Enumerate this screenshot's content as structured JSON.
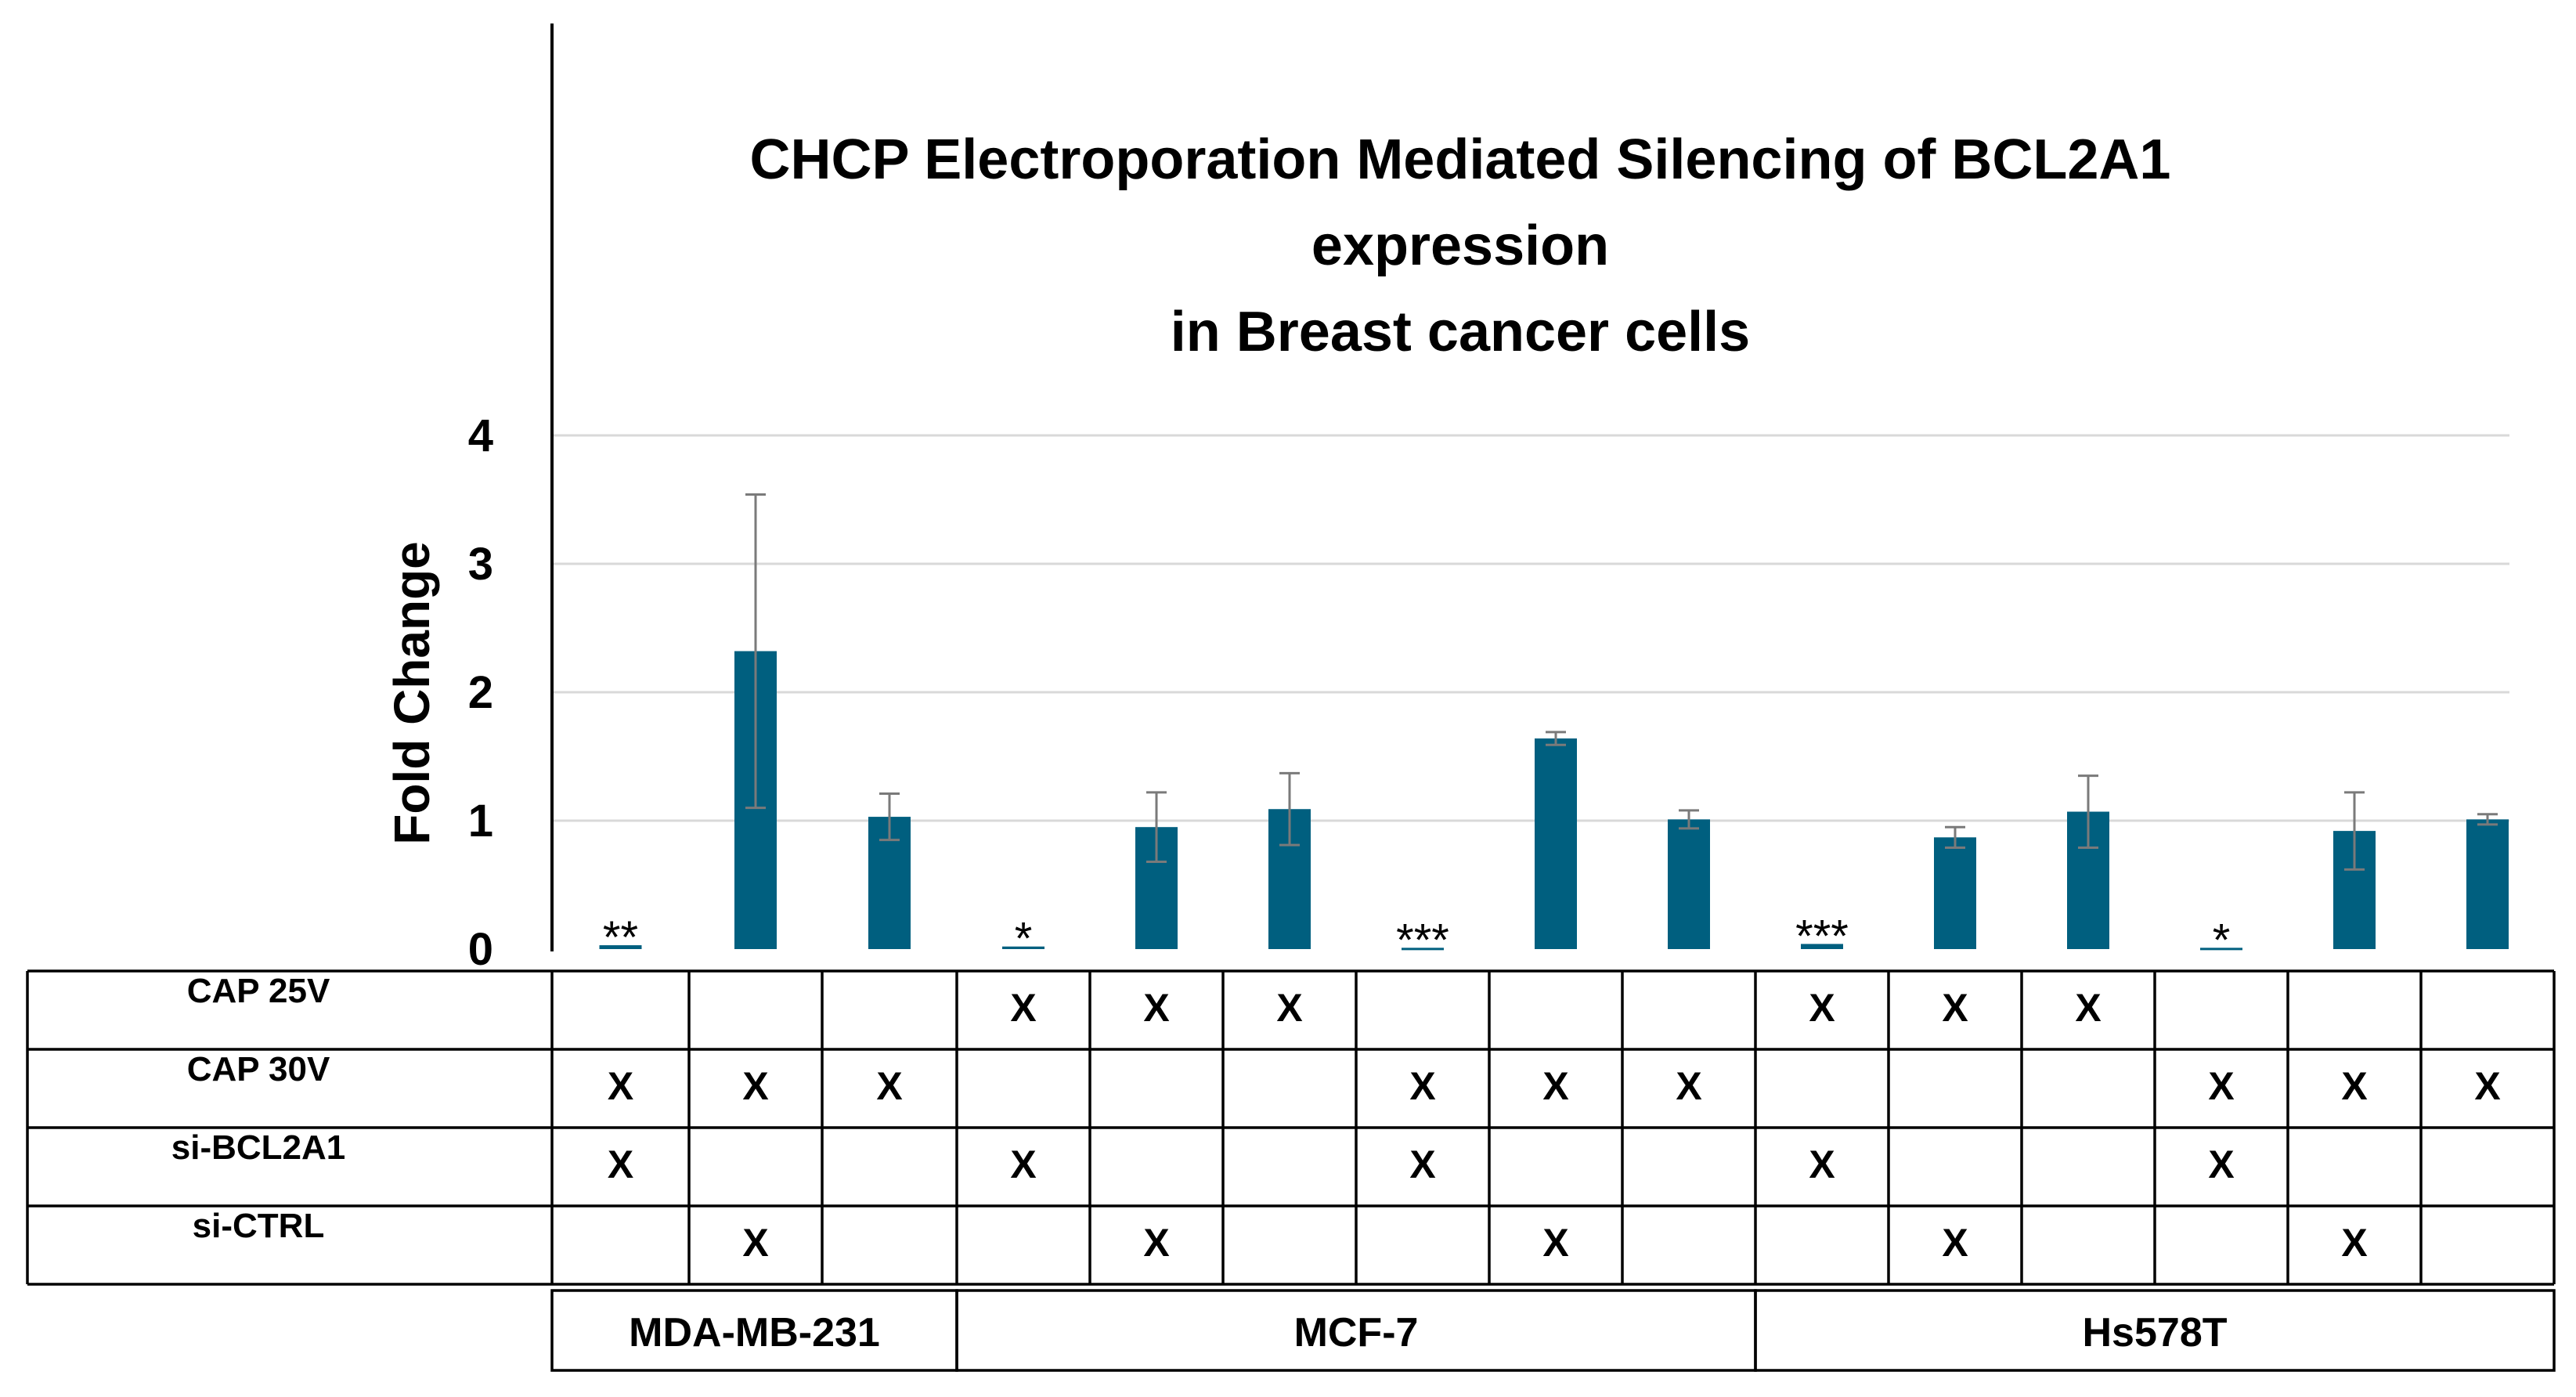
{
  "chart_data": {
    "type": "bar",
    "title": [
      "CHCP Electroporation Mediated Silencing of BCL2A1",
      "expression",
      "in Breast cancer cells"
    ],
    "ylabel": "Fold Change",
    "xlabel": "",
    "ylim": [
      0,
      4
    ],
    "yticks": [
      "0",
      "1",
      "2",
      "3",
      "4"
    ],
    "grid": true,
    "bar_color": "#005f7f",
    "error_color": "#7a7a7a",
    "values": [
      0.03,
      2.32,
      1.03,
      0.02,
      0.95,
      1.09,
      0.01,
      1.64,
      1.01,
      0.04,
      0.87,
      1.07,
      0.01,
      0.92,
      1.01
    ],
    "errors": [
      0.01,
      1.22,
      0.18,
      0.01,
      0.27,
      0.28,
      0.005,
      0.05,
      0.07,
      0.01,
      0.08,
      0.28,
      0.005,
      0.3,
      0.04
    ],
    "significance": [
      "**",
      "",
      "",
      "*",
      "",
      "",
      "***",
      "",
      "",
      "***",
      "",
      "",
      "*",
      "",
      ""
    ]
  },
  "table": {
    "rows": [
      {
        "label": "CAP 25V",
        "marks": [
          "",
          "",
          "",
          "X",
          "X",
          "X",
          "",
          "",
          "",
          "X",
          "X",
          "X",
          "",
          "",
          ""
        ]
      },
      {
        "label": "CAP 30V",
        "marks": [
          "X",
          "X",
          "X",
          "",
          "",
          "",
          "X",
          "X",
          "X",
          "",
          "",
          "",
          "X",
          "X",
          "X"
        ]
      },
      {
        "label": "si-BCL2A1",
        "marks": [
          "X",
          "",
          "",
          "X",
          "",
          "",
          "X",
          "",
          "",
          "X",
          "",
          "",
          "X",
          "",
          ""
        ]
      },
      {
        "label": "si-CTRL",
        "marks": [
          "",
          "X",
          "",
          "",
          "X",
          "",
          "",
          "X",
          "",
          "",
          "X",
          "",
          "",
          "X",
          ""
        ]
      }
    ],
    "cell_lines": [
      {
        "name": "MDA-MB-231",
        "from": 0,
        "to": 2
      },
      {
        "name": "MCF-7",
        "from": 3,
        "to": 8
      },
      {
        "name": "Hs578T",
        "from": 9,
        "to": 14
      }
    ]
  }
}
